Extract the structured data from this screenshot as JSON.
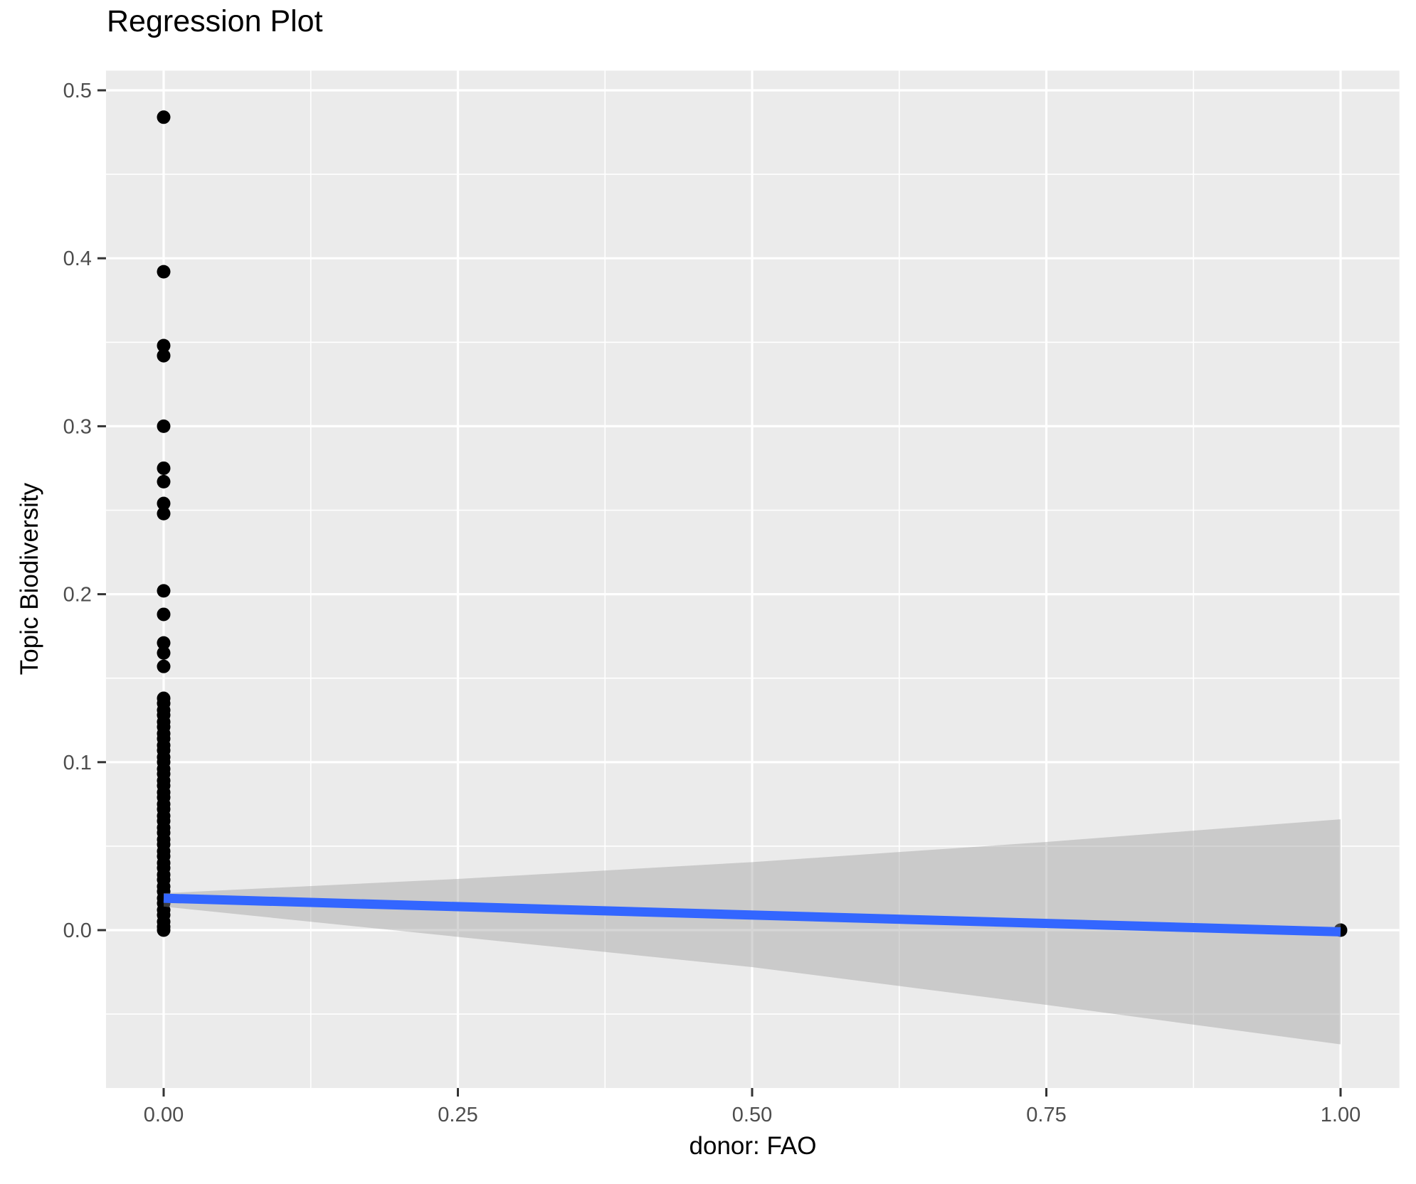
{
  "chart_data": {
    "type": "scatter",
    "title": "Regression Plot",
    "xlabel": "donor: FAO",
    "ylabel": "Topic Biodiversity",
    "xlim": [
      -0.049,
      1.05
    ],
    "ylim": [
      -0.094,
      0.5117
    ],
    "grid": true,
    "legend": false,
    "x_major_ticks": [
      0,
      0.25,
      0.5,
      0.75,
      1.0
    ],
    "x_tick_labels": [
      "0.00",
      "0.25",
      "0.50",
      "0.75",
      "1.00"
    ],
    "x_minor_ticks": [
      0.125,
      0.375,
      0.625,
      0.875
    ],
    "y_major_ticks": [
      0,
      0.1,
      0.2,
      0.3,
      0.4,
      0.5
    ],
    "y_tick_labels": [
      "0.0",
      "0.1",
      "0.2",
      "0.3",
      "0.4",
      "0.5"
    ],
    "y_minor_ticks": [
      -0.05,
      0.05,
      0.15,
      0.25,
      0.35,
      0.45
    ],
    "points": [
      [
        0,
        0.484
      ],
      [
        0,
        0.392
      ],
      [
        0,
        0.348
      ],
      [
        0,
        0.342
      ],
      [
        0,
        0.3
      ],
      [
        0,
        0.275
      ],
      [
        0,
        0.267
      ],
      [
        0,
        0.254
      ],
      [
        0,
        0.248
      ],
      [
        0,
        0.202
      ],
      [
        0,
        0.188
      ],
      [
        0,
        0.171
      ],
      [
        0,
        0.165
      ],
      [
        0,
        0.157
      ],
      [
        0,
        0.138
      ],
      [
        0,
        0.135
      ],
      [
        0,
        0.131
      ],
      [
        0,
        0.128
      ],
      [
        0,
        0.124
      ],
      [
        0,
        0.121
      ],
      [
        0,
        0.117
      ],
      [
        0,
        0.114
      ],
      [
        0,
        0.11
      ],
      [
        0,
        0.107
      ],
      [
        0,
        0.103
      ],
      [
        0,
        0.1
      ],
      [
        0,
        0.096
      ],
      [
        0,
        0.093
      ],
      [
        0,
        0.089
      ],
      [
        0,
        0.086
      ],
      [
        0,
        0.082
      ],
      [
        0,
        0.079
      ],
      [
        0,
        0.075
      ],
      [
        0,
        0.072
      ],
      [
        0,
        0.068
      ],
      [
        0,
        0.065
      ],
      [
        0,
        0.061
      ],
      [
        0,
        0.058
      ],
      [
        0,
        0.054
      ],
      [
        0,
        0.051
      ],
      [
        0,
        0.047
      ],
      [
        0,
        0.044
      ],
      [
        0,
        0.04
      ],
      [
        0,
        0.037
      ],
      [
        0,
        0.033
      ],
      [
        0,
        0.03
      ],
      [
        0,
        0.026
      ],
      [
        0,
        0.023
      ],
      [
        0,
        0.019
      ],
      [
        0,
        0.016
      ],
      [
        0,
        0.012
      ],
      [
        0,
        0.009
      ],
      [
        0,
        0.005
      ],
      [
        0,
        0.002
      ],
      [
        0,
        0.0
      ],
      [
        1,
        0.0
      ]
    ],
    "regression_line": {
      "x": [
        0,
        1
      ],
      "y": [
        0.019,
        -0.001
      ],
      "color": "#3366FF"
    },
    "confidence_band": {
      "x": [
        0,
        0.25,
        0.5,
        0.75,
        1.0
      ],
      "upper": [
        0.022,
        0.0305,
        0.0405,
        0.0525,
        0.066
      ],
      "lower": [
        0.014,
        -0.004,
        -0.022,
        -0.0445,
        -0.068
      ],
      "fill": "#999999",
      "opacity": 0.4
    },
    "colors": {
      "panel_bg": "#EBEBEB",
      "grid": "#FFFFFF",
      "points": "#000000",
      "tick_text": "#4D4D4D",
      "tick_mark": "#333333"
    }
  }
}
